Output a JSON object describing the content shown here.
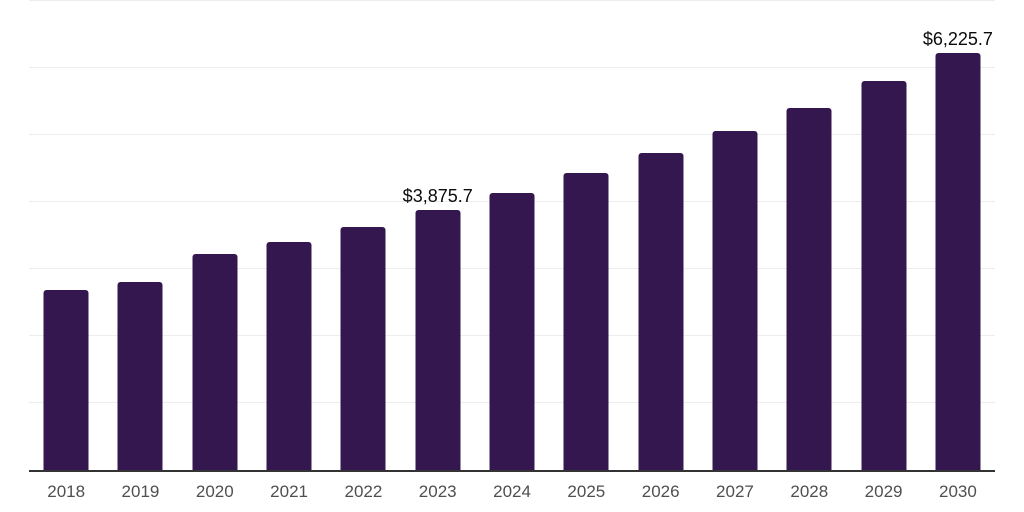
{
  "chart": {
    "bar_color": "#34174e",
    "axis_color": "#333333",
    "gridline_color": "#ededed",
    "x_label_color": "#4f4f4f",
    "data_label_color": "#0b0b0b"
  },
  "chart_data": {
    "type": "bar",
    "title": "",
    "xlabel": "",
    "ylabel": "",
    "ylim": [
      0,
      7000
    ],
    "gridline_interval": 1000,
    "grid": "horizontal",
    "legend": "none",
    "y_axis_ticks_visible": false,
    "categories": [
      "2018",
      "2019",
      "2020",
      "2021",
      "2022",
      "2023",
      "2024",
      "2025",
      "2026",
      "2027",
      "2028",
      "2029",
      "2030"
    ],
    "values": [
      2679.5,
      2806.3,
      3222.9,
      3402.1,
      3626.5,
      3875.7,
      4134.2,
      4432.8,
      4731.3,
      5059.6,
      5402.8,
      5806.4,
      6225.7
    ],
    "annotations": [
      {
        "category": "2023",
        "text": "$3,875.7"
      },
      {
        "category": "2030",
        "text": "$6,225.7"
      }
    ]
  }
}
